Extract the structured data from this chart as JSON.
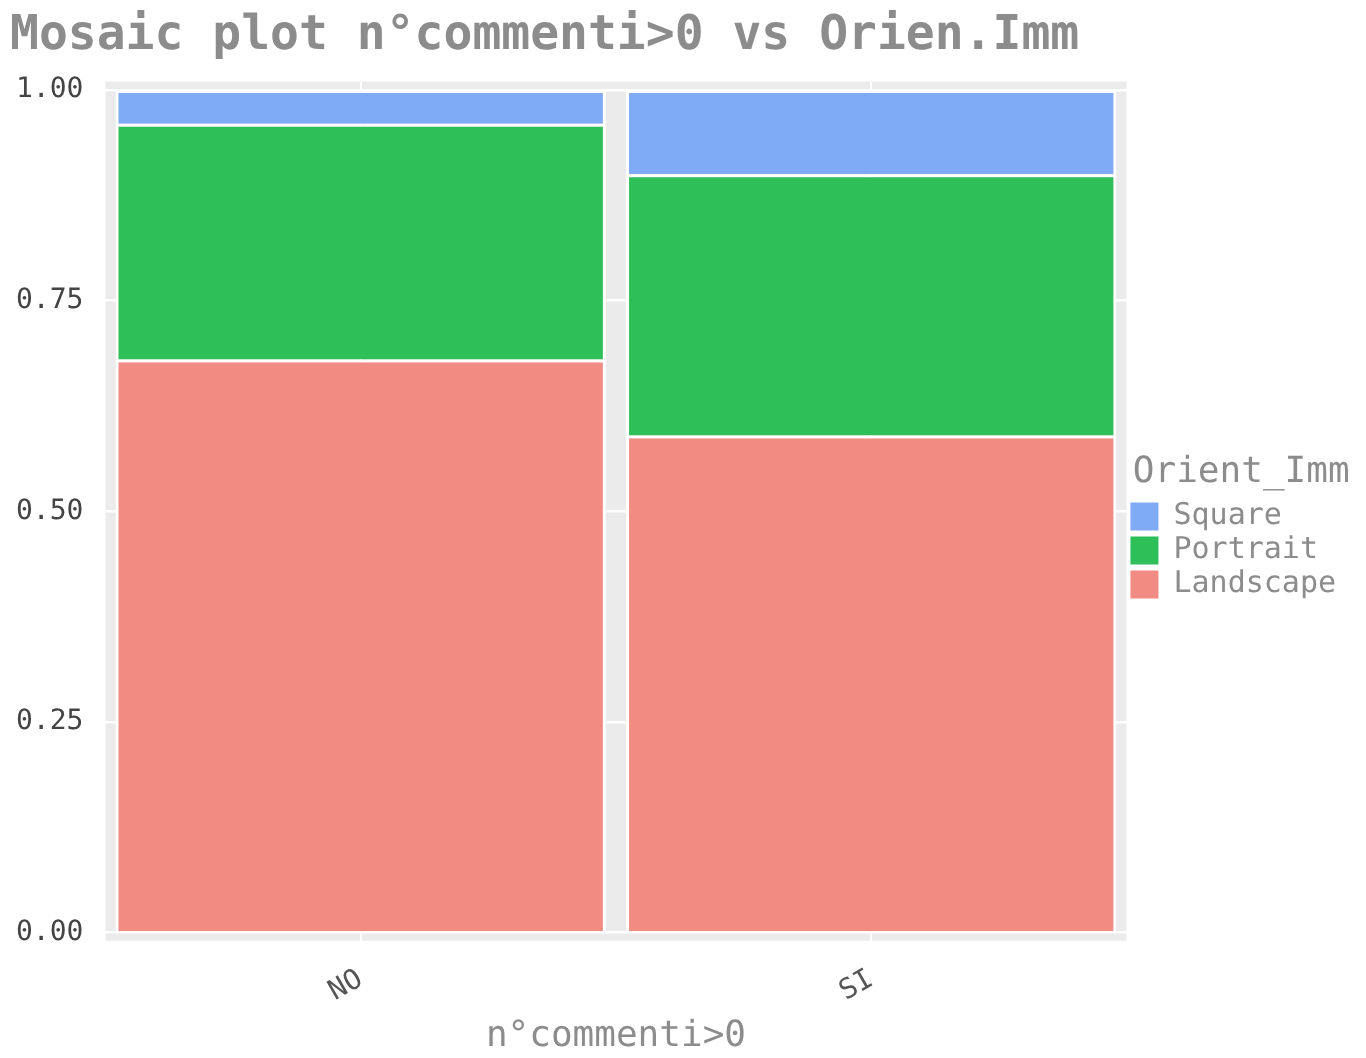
{
  "chart_data": {
    "type": "bar",
    "title": "Mosaic plot n°commenti>0 vs Orien.Imm",
    "xlabel": "n°commenti>0",
    "legend_title": "Orient_Imm",
    "categories": [
      "NO",
      "SI"
    ],
    "stacked": true,
    "series": [
      {
        "name": "Landscape",
        "color": "#f28b82",
        "values": [
          0.68,
          0.59
        ]
      },
      {
        "name": "Portrait",
        "color": "#2ebf58",
        "values": [
          0.28,
          0.31
        ]
      },
      {
        "name": "Square",
        "color": "#7faaf5",
        "values": [
          0.04,
          0.1
        ]
      }
    ],
    "ylim": [
      -0.01,
      1.01
    ],
    "yticks": [
      {
        "value": 0,
        "label": "0.00"
      },
      {
        "value": 0.25,
        "label": "0.25"
      },
      {
        "value": 0.5,
        "label": "0.50"
      },
      {
        "value": 0.75,
        "label": "0.75"
      },
      {
        "value": 1,
        "label": "1.00"
      }
    ],
    "grid": true,
    "legend": "right"
  }
}
